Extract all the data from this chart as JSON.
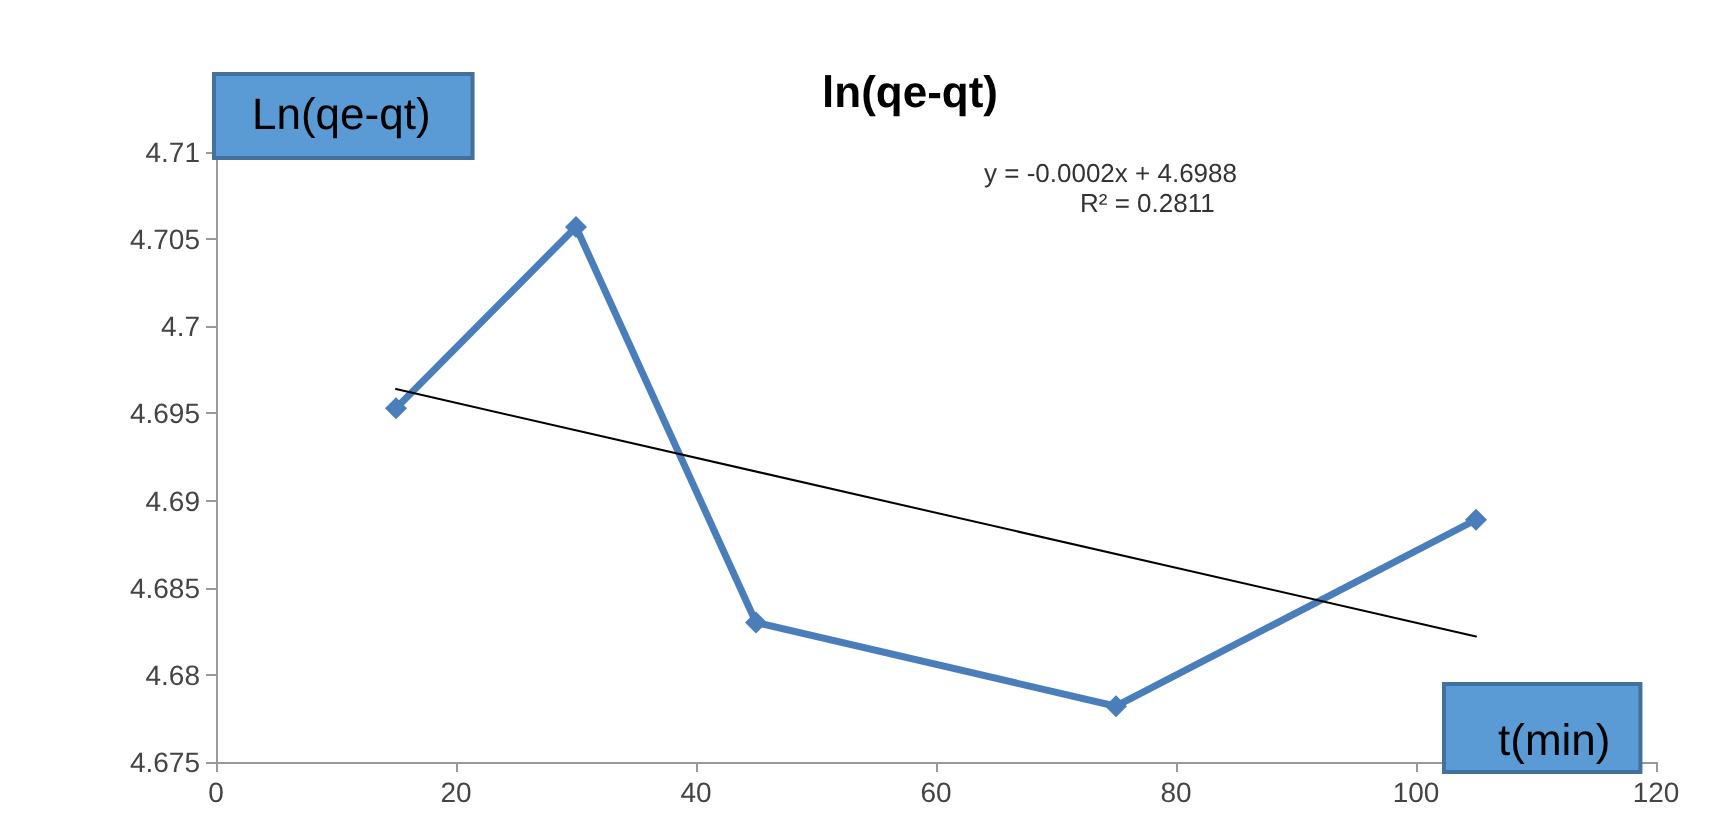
{
  "chart_data": {
    "type": "line",
    "title": "ln(qe-qt)",
    "xlabel": "t(min)",
    "ylabel": "Ln(qe-qt)",
    "annotations": [
      "y = -0.0002x + 4.6988",
      "R² = 0.2811"
    ],
    "x": [
      15,
      30,
      45,
      75,
      105
    ],
    "series": [
      {
        "color": "#4a7ebb",
        "values": [
          4.6953,
          4.7057,
          4.683,
          4.6782,
          4.6889
        ],
        "marker": "diamond"
      },
      {
        "type": "line",
        "color": "#000000",
        "x": [
          15,
          105
        ],
        "values": [
          4.6964,
          4.6822
        ],
        "marker": "none"
      }
    ],
    "xlim": [
      0,
      120
    ],
    "xticks": [
      0,
      20,
      40,
      60,
      80,
      100,
      120
    ],
    "ylim": [
      4.675,
      4.71
    ],
    "yticks": [
      4.675,
      4.68,
      4.685,
      4.69,
      4.695,
      4.7,
      4.705,
      4.71
    ],
    "grid": false
  }
}
